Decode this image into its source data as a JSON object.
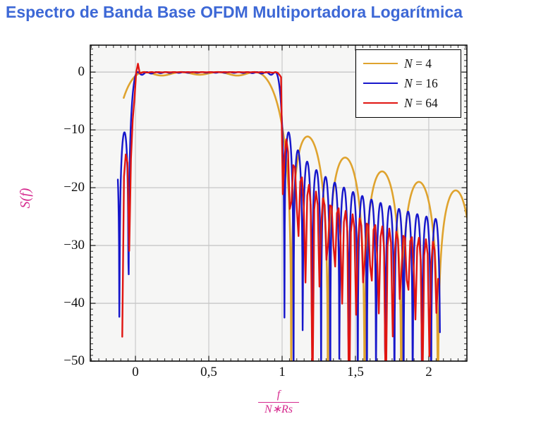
{
  "title": {
    "text": "Espectro de Banda Base OFDM Multiportadora Logarítmica",
    "color": "#3d68d6"
  },
  "chart_data": {
    "type": "line",
    "title": "Espectro de Banda Base OFDM Multiportadora Logarítmica",
    "ylabel": "S(f)",
    "xlabel_numerator": "f",
    "xlabel_denominator": "N∗Rs",
    "axis_label_color": "#d62b8f",
    "plot_bg": "#f6f6f5",
    "grid_color": "#c6c6c6",
    "frame_color": "#000000",
    "tick_color": "#1a1a1a",
    "xlim": [
      -0.308,
      2.26
    ],
    "ylim": [
      -50,
      4.66
    ],
    "xticks": [
      0,
      0.5,
      1,
      1.5,
      2
    ],
    "xtick_labels": [
      "0",
      "0,5",
      "1",
      "1,5",
      "2"
    ],
    "yticks": [
      0,
      -10,
      -20,
      -30,
      -40,
      -50
    ],
    "ytick_labels": [
      "0",
      "−10",
      "−20",
      "−30",
      "−40",
      "−50"
    ],
    "x_minor_step": 0.05,
    "y_minor_step": 1,
    "grid": true,
    "legend_position": "top-right",
    "model": {
      "name": "ofdm-sum-sinc2",
      "formula": "S(x) = 10*log10( sum_{k=0}^{N-1} sinc^2(N*x - k - offset) ), x = f/(N*Rs)",
      "carrier_offset": 0.25,
      "clip_db": -62
    },
    "series": [
      {
        "label": "N = 4",
        "var": "N",
        "eq": " = 4",
        "N": 4,
        "color": "#dfa32e",
        "stroke_width": 2.6,
        "x_start": -0.08,
        "x_end": 2.26,
        "step": 0.002,
        "key_points": [
          [
            -0.08,
            -4.3
          ],
          [
            0.1,
            0
          ],
          [
            0.5,
            -0.4
          ],
          [
            0.875,
            -3
          ],
          [
            1.0,
            -9
          ],
          [
            1.06,
            -45
          ],
          [
            1.17,
            -11
          ],
          [
            1.3,
            -40
          ],
          [
            1.42,
            -14.5
          ],
          [
            1.7,
            -17
          ],
          [
            1.93,
            -19
          ],
          [
            2.12,
            -45
          ],
          [
            2.26,
            -21
          ]
        ]
      },
      {
        "label": "N = 16",
        "var": "N",
        "eq": " = 16",
        "N": 16,
        "color": "#1717cb",
        "stroke_width": 2.4,
        "x_start": -0.12,
        "x_end": 2.076,
        "step": 0.002,
        "key_points": [
          [
            -0.12,
            -11.5
          ],
          [
            -0.06,
            -30
          ],
          [
            0.0,
            -0.3
          ],
          [
            0.5,
            0
          ],
          [
            0.97,
            -2
          ],
          [
            1.0,
            -15
          ],
          [
            1.04,
            -12.5
          ],
          [
            1.25,
            -16.5
          ],
          [
            1.5,
            -19.5
          ],
          [
            1.75,
            -22
          ],
          [
            2.0,
            -24
          ],
          [
            2.05,
            -50
          ]
        ]
      },
      {
        "label": "N = 64",
        "var": "N",
        "eq": " = 64",
        "N": 64,
        "color": "#e01511",
        "stroke_width": 2.4,
        "x_start": -0.09,
        "x_end": 2.068,
        "step": 0.0119,
        "gain_db": 2.0,
        "overshoot_db": 1.45,
        "overshoot_x": 0.015,
        "key_points": [
          [
            -0.09,
            -19
          ],
          [
            -0.05,
            -13.5
          ],
          [
            -0.02,
            -45
          ],
          [
            0.015,
            1.45
          ],
          [
            0.5,
            0
          ],
          [
            0.99,
            0
          ],
          [
            1.02,
            -14
          ],
          [
            1.25,
            -20.5
          ],
          [
            1.47,
            -50
          ],
          [
            1.5,
            -24
          ],
          [
            1.75,
            -27.5
          ],
          [
            2.0,
            -29.5
          ],
          [
            2.07,
            -50
          ]
        ]
      }
    ]
  }
}
